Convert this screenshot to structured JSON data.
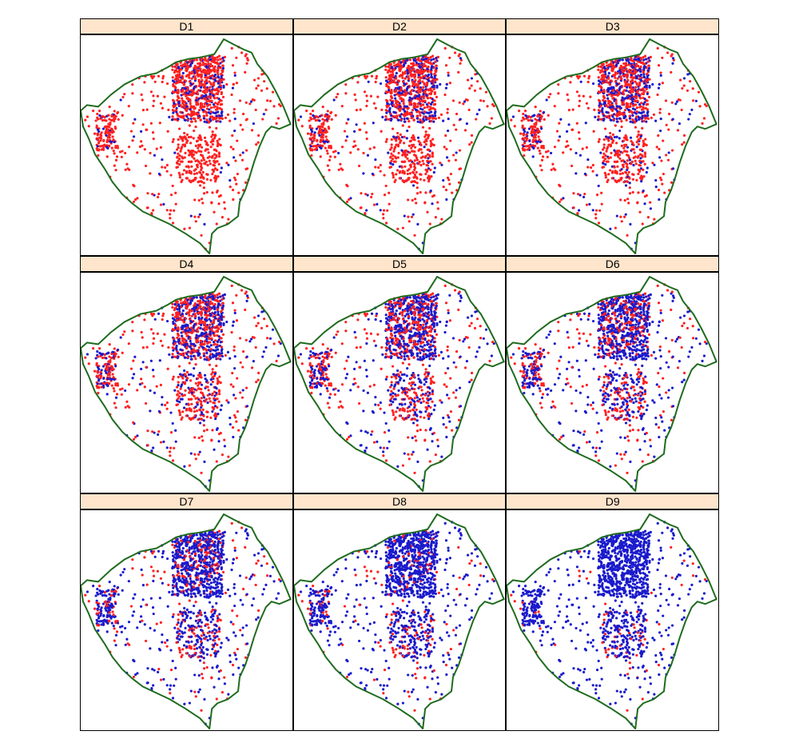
{
  "colors": {
    "strip_bg": "#ffe5cc",
    "boundary": "#1e6b1e",
    "class_a": "#ff2020",
    "class_b": "#1a1acc"
  },
  "panels": [
    {
      "label": "D1",
      "blue_fraction": 0.12
    },
    {
      "label": "D2",
      "blue_fraction": 0.22
    },
    {
      "label": "D3",
      "blue_fraction": 0.3
    },
    {
      "label": "D4",
      "blue_fraction": 0.4
    },
    {
      "label": "D5",
      "blue_fraction": 0.5
    },
    {
      "label": "D6",
      "blue_fraction": 0.6
    },
    {
      "label": "D7",
      "blue_fraction": 0.7
    },
    {
      "label": "D8",
      "blue_fraction": 0.8
    },
    {
      "label": "D9",
      "blue_fraction": 0.9
    }
  ]
}
